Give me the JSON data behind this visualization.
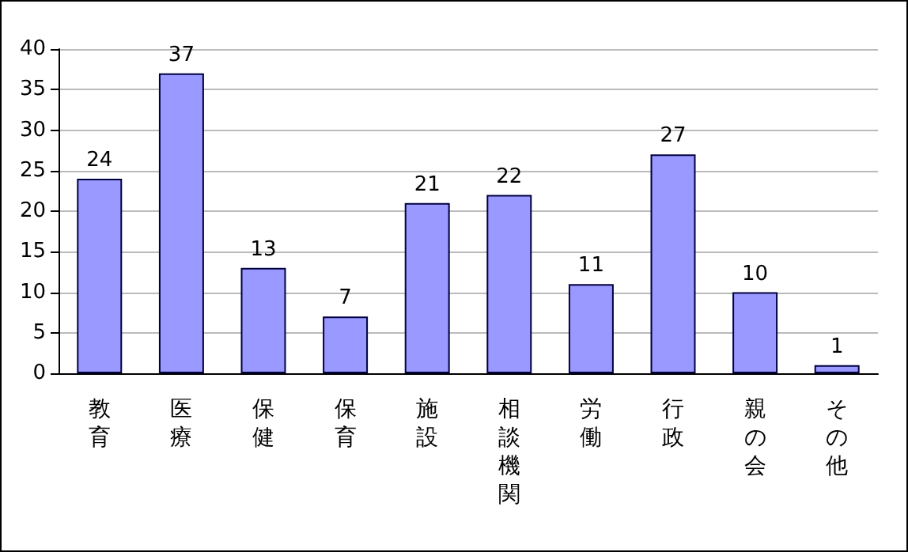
{
  "chart_data": {
    "type": "bar",
    "categories": [
      "教育",
      "医療",
      "保健",
      "保育",
      "施設",
      "相談機関",
      "労働",
      "行政",
      "親の会",
      "その他"
    ],
    "values": [
      24,
      37,
      13,
      7,
      21,
      22,
      11,
      27,
      10,
      1
    ],
    "color": "#9999ff",
    "ylim": [
      0,
      40
    ],
    "yticks": [
      0,
      5,
      10,
      15,
      20,
      25,
      30,
      35,
      40
    ],
    "grid": "y",
    "data_labels": true
  }
}
